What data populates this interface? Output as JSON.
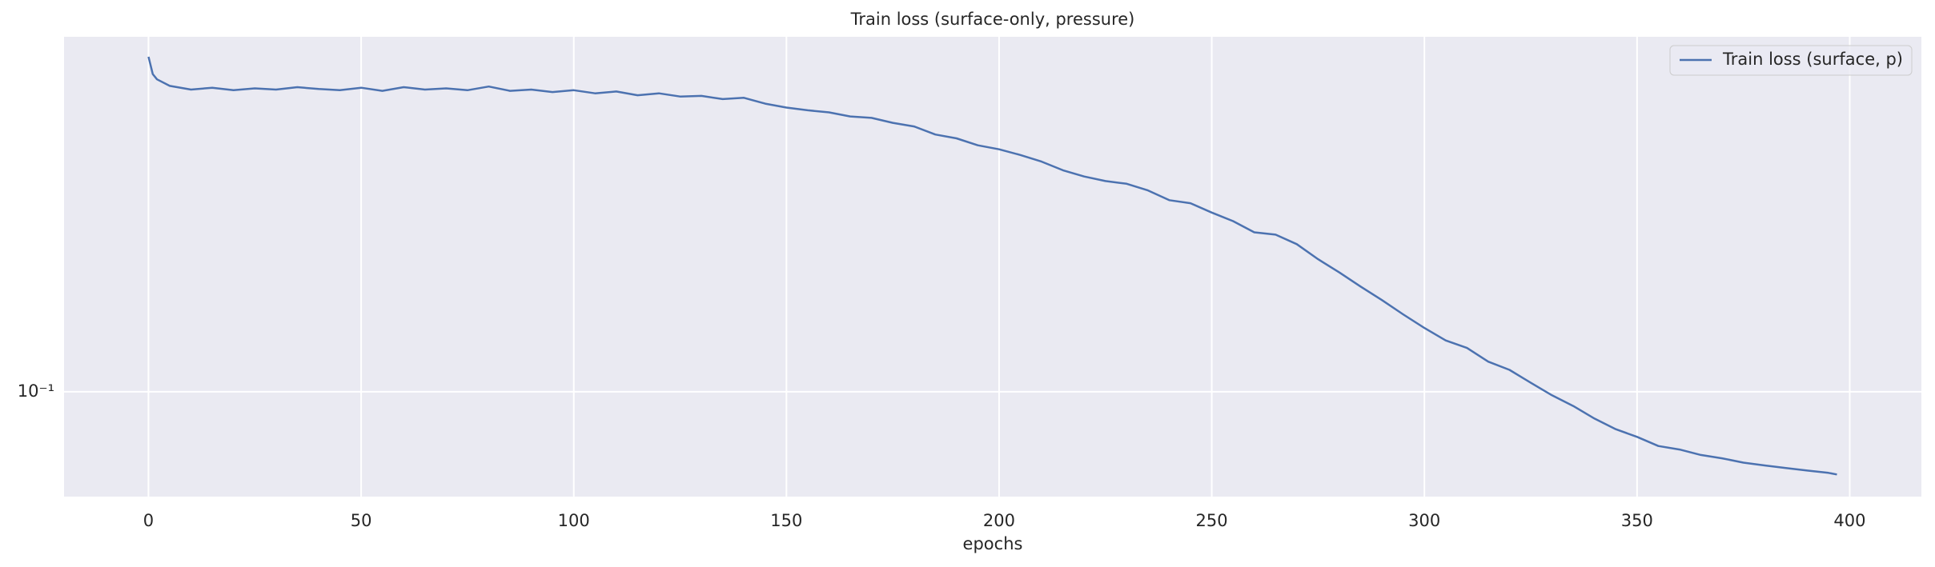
{
  "chart_data": {
    "type": "line",
    "title": "Train loss (surface-only, pressure)",
    "xlabel": "epochs",
    "xlim": [
      -19.85,
      416.85
    ],
    "xticks": [
      0,
      50,
      100,
      150,
      200,
      250,
      300,
      350,
      400
    ],
    "ylim": [
      0.0634,
      0.468
    ],
    "yticks": [
      {
        "value": 0.1,
        "label": "10⁻¹"
      }
    ],
    "yscale": "log",
    "grid": true,
    "legend": "upper right",
    "series": [
      {
        "name": "Train loss (surface, p)",
        "color": "#4c72b0",
        "x": [
          0,
          1,
          2,
          5,
          10,
          15,
          20,
          25,
          30,
          35,
          40,
          45,
          50,
          55,
          60,
          65,
          70,
          75,
          80,
          85,
          90,
          95,
          100,
          105,
          110,
          115,
          120,
          125,
          130,
          135,
          140,
          145,
          150,
          155,
          160,
          165,
          170,
          175,
          180,
          185,
          190,
          195,
          200,
          205,
          210,
          215,
          220,
          225,
          230,
          235,
          240,
          245,
          250,
          255,
          260,
          265,
          270,
          275,
          280,
          285,
          290,
          295,
          300,
          305,
          310,
          315,
          320,
          325,
          330,
          335,
          340,
          345,
          350,
          355,
          360,
          365,
          370,
          375,
          380,
          385,
          390,
          395,
          397
        ],
        "values": [
          0.429,
          0.398,
          0.389,
          0.378,
          0.372,
          0.375,
          0.371,
          0.374,
          0.372,
          0.376,
          0.373,
          0.371,
          0.375,
          0.37,
          0.376,
          0.372,
          0.374,
          0.371,
          0.377,
          0.37,
          0.372,
          0.368,
          0.371,
          0.366,
          0.369,
          0.363,
          0.366,
          0.361,
          0.362,
          0.357,
          0.359,
          0.35,
          0.344,
          0.34,
          0.337,
          0.331,
          0.329,
          0.322,
          0.317,
          0.306,
          0.301,
          0.292,
          0.287,
          0.28,
          0.272,
          0.262,
          0.255,
          0.25,
          0.247,
          0.24,
          0.23,
          0.227,
          0.218,
          0.21,
          0.2,
          0.198,
          0.19,
          0.178,
          0.168,
          0.158,
          0.149,
          0.14,
          0.132,
          0.125,
          0.121,
          0.114,
          0.11,
          0.104,
          0.0985,
          0.094,
          0.089,
          0.085,
          0.0822,
          0.079,
          0.0778,
          0.076,
          0.0749,
          0.0735,
          0.0726,
          0.0718,
          0.071,
          0.0703,
          0.0698
        ]
      }
    ]
  }
}
